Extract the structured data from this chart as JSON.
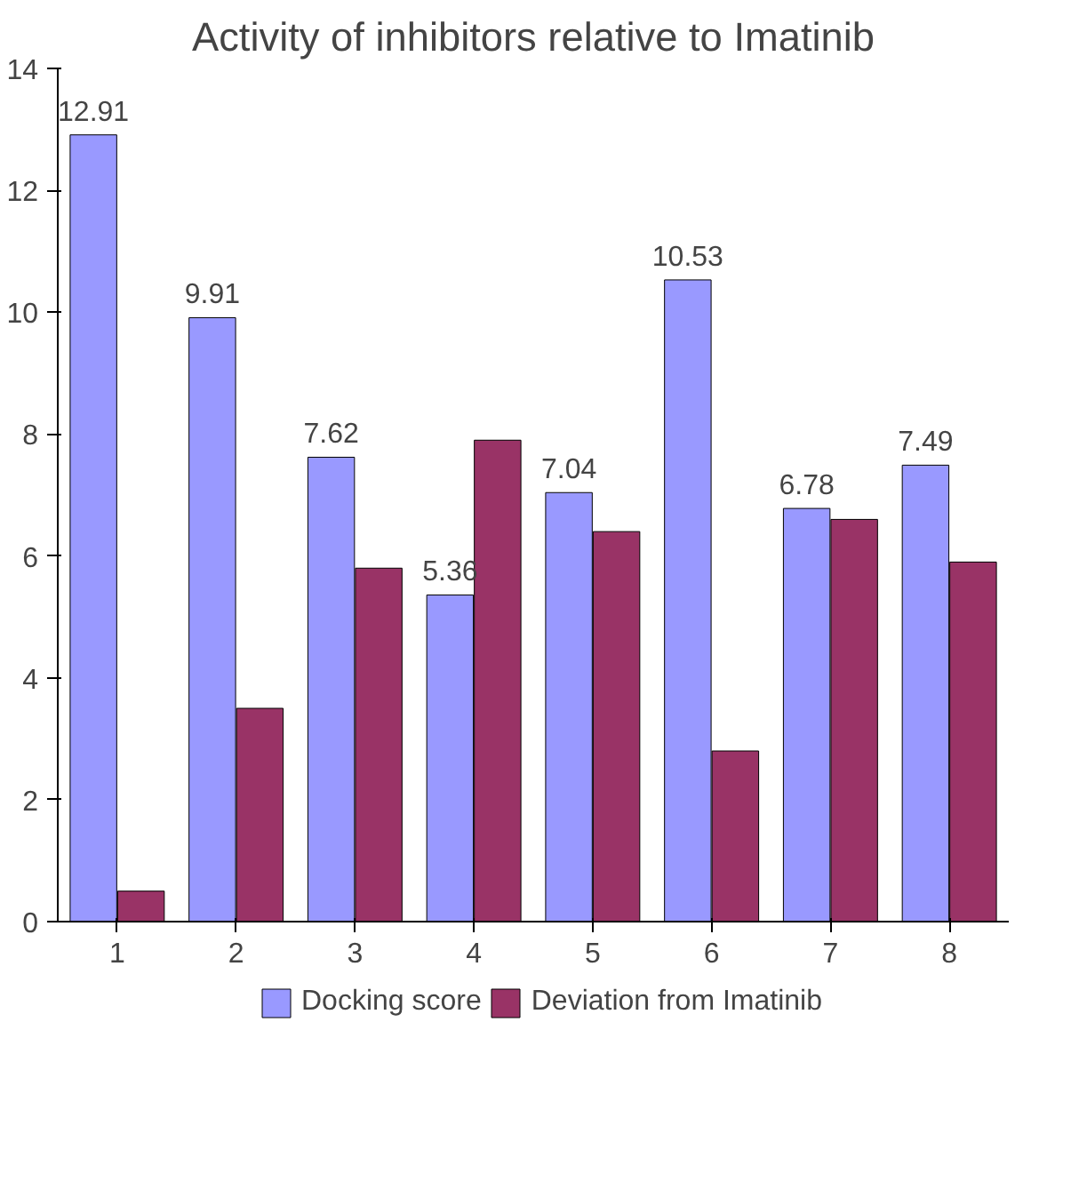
{
  "chart_data": {
    "type": "bar",
    "title": "Activity of inhibitors relative to Imatinib",
    "categories": [
      "1",
      "2",
      "3",
      "4",
      "5",
      "6",
      "7",
      "8"
    ],
    "series": [
      {
        "name": "Docking score",
        "color": "#9999ff",
        "values": [
          12.91,
          9.91,
          7.62,
          5.36,
          7.04,
          10.53,
          6.78,
          7.49
        ],
        "value_labels": [
          "12.91",
          "9.91",
          "7.62",
          "5.36",
          "7.04",
          "10.53",
          "6.78",
          "7.49"
        ]
      },
      {
        "name": "Deviation from Imatinib",
        "color": "#993366",
        "values": [
          0.5,
          3.5,
          5.8,
          7.9,
          6.4,
          2.8,
          6.6,
          5.9
        ]
      }
    ],
    "ylim": [
      0,
      14
    ],
    "yticks": [
      0,
      2,
      4,
      6,
      8,
      10,
      12,
      14
    ],
    "grid": false,
    "legend": "bottom"
  }
}
